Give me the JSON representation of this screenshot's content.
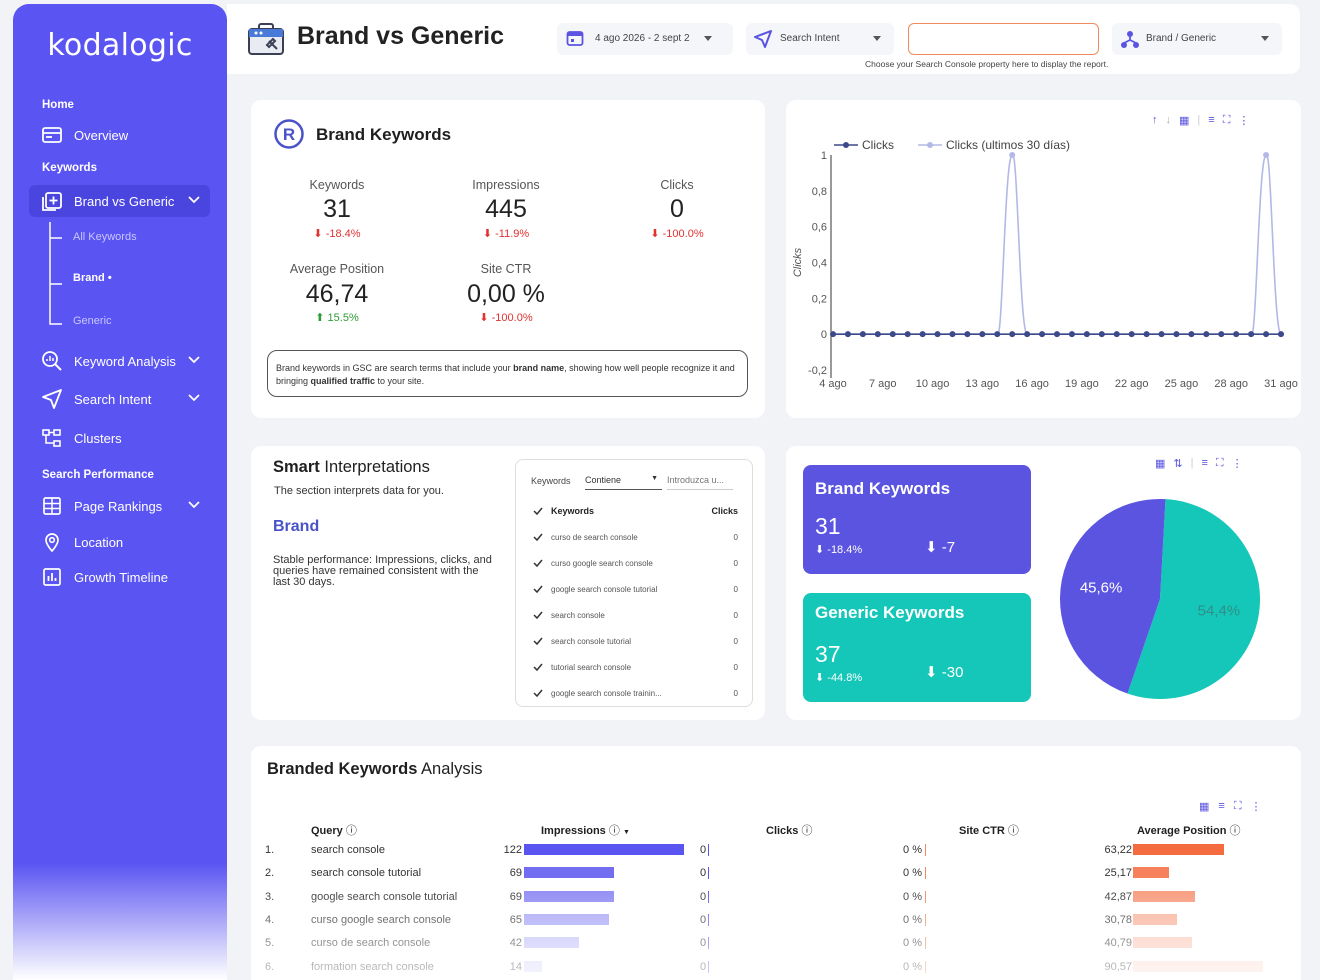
{
  "app": {
    "logo": "kodalogic",
    "title": "Brand vs Generic"
  },
  "sidebar": {
    "sections": {
      "home": "Home",
      "keywords": "Keywords",
      "search_performance": "Search Performance"
    },
    "items": {
      "overview": "Overview",
      "brand_vs_generic": "Brand vs Generic",
      "all_keywords": "All Keywords",
      "brand": "Brand •",
      "generic": "Generic",
      "keyword_analysis": "Keyword Analysis",
      "search_intent": "Search Intent",
      "clusters": "Clusters",
      "page_rankings": "Page Rankings",
      "location": "Location",
      "growth_timeline": "Growth Timeline"
    }
  },
  "header": {
    "date_range": "4 ago 2026 - 2 sept 2",
    "search_intent": "Search Intent",
    "property_value": "",
    "brand_generic": "Brand / Generic",
    "hint": "Choose your Search Console property here to display the report."
  },
  "brand_keywords": {
    "title": "Brand Keywords",
    "kpis": [
      {
        "label": "Keywords",
        "value": "31",
        "delta": "-18.4%",
        "trend": "down"
      },
      {
        "label": "Impressions",
        "value": "445",
        "delta": "-11.9%",
        "trend": "down"
      },
      {
        "label": "Clicks",
        "value": "0",
        "delta": "-100.0%",
        "trend": "down"
      },
      {
        "label": "Average Position",
        "value": "46,74",
        "delta": "15.5%",
        "trend": "up"
      },
      {
        "label": "Site CTR",
        "value": "0,00 %",
        "delta": "-100.0%",
        "trend": "down"
      }
    ],
    "note_pre": "Brand keywords in GSC are search terms that include your ",
    "note_b1": "brand name",
    "note_mid": ", showing how well people recognize it and bringing ",
    "note_b2": "qualified traffic",
    "note_post": " to your site."
  },
  "chart_data": {
    "type": "line",
    "series": [
      {
        "name": "Clicks",
        "color": "#3d4a8a",
        "values": [
          0,
          0,
          0,
          0,
          0,
          0,
          0,
          0,
          0,
          0,
          0,
          0,
          0,
          0,
          0,
          0,
          0,
          0,
          0,
          0,
          0,
          0,
          0,
          0,
          0,
          0,
          0,
          0,
          0,
          0,
          0
        ]
      },
      {
        "name": "Clicks (ultimos 30 días)",
        "color": "#b3b8e6",
        "values": [
          0,
          0,
          0,
          0,
          0,
          0,
          0,
          0,
          0,
          0,
          0,
          0,
          1,
          0,
          0,
          0,
          0,
          0,
          0,
          0,
          0,
          0,
          0,
          0,
          0,
          0,
          0,
          0,
          0,
          1,
          0
        ]
      }
    ],
    "x_ticks": [
      "4 ago",
      "7 ago",
      "10 ago",
      "13 ago",
      "16 ago",
      "19 ago",
      "22 ago",
      "25 ago",
      "28 ago",
      "31 ago"
    ],
    "y_ticks": [
      "1",
      "0,8",
      "0,6",
      "0,4",
      "0,2",
      "0",
      "-0,2"
    ],
    "ylabel": "Clicks",
    "ylim": [
      -0.2,
      1
    ],
    "grid": false,
    "legend": "top-left"
  },
  "smart": {
    "title_bold": "Smart",
    "title_rest": " Interpretations",
    "subtitle": "The section interprets data for you.",
    "heading": "Brand",
    "text": "Stable performance: Impressions, clicks, and queries have remained consistent with the last 30 days."
  },
  "kw_filter": {
    "label": "Keywords",
    "operator": "Contiene",
    "placeholder": "Introduzca u...",
    "col_keywords": "Keywords",
    "col_clicks": "Clicks",
    "rows": [
      {
        "kw": "curso de search console",
        "clicks": "0"
      },
      {
        "kw": "curso google search console",
        "clicks": "0"
      },
      {
        "kw": "google search console tutorial",
        "clicks": "0"
      },
      {
        "kw": "search console",
        "clicks": "0"
      },
      {
        "kw": "search console tutorial",
        "clicks": "0"
      },
      {
        "kw": "tutorial search console",
        "clicks": "0"
      },
      {
        "kw": "google search console trainin...",
        "clicks": "0"
      }
    ]
  },
  "summary": {
    "brand": {
      "title": "Brand Keywords",
      "value": "31",
      "delta_pct": "-18.4%",
      "delta_abs": "-7",
      "color": "#5a54e0"
    },
    "generic": {
      "title": "Generic Keywords",
      "value": "37",
      "delta_pct": "-44.8%",
      "delta_abs": "-30",
      "color": "#14c7b8"
    },
    "pie": {
      "brand_pct": 45.6,
      "generic_pct": 54.4,
      "brand_label": "45,6%",
      "generic_label": "54,4%"
    }
  },
  "analysis": {
    "title_bold": "Branded Keywords",
    "title_rest": " Analysis",
    "headers": {
      "query": "Query",
      "impressions": "Impressions",
      "clicks": "Clicks",
      "ctr": "Site CTR",
      "position": "Average Position"
    },
    "rows": [
      {
        "n": "1.",
        "query": "search console",
        "impr": 122,
        "clicks": "0",
        "ctr": "0 %",
        "pos": "63,22",
        "pos_val": 63.22
      },
      {
        "n": "2.",
        "query": "search console tutorial",
        "impr": 69,
        "clicks": "0",
        "ctr": "0 %",
        "pos": "25,17",
        "pos_val": 25.17
      },
      {
        "n": "3.",
        "query": "google search console tutorial",
        "impr": 69,
        "clicks": "0",
        "ctr": "0 %",
        "pos": "42,87",
        "pos_val": 42.87
      },
      {
        "n": "4.",
        "query": "curso google search console",
        "impr": 65,
        "clicks": "0",
        "ctr": "0 %",
        "pos": "30,78",
        "pos_val": 30.78
      },
      {
        "n": "5.",
        "query": "curso de search console",
        "impr": 42,
        "clicks": "0",
        "ctr": "0 %",
        "pos": "40,79",
        "pos_val": 40.79
      },
      {
        "n": "6.",
        "query": "formation search console",
        "impr": 14,
        "clicks": "0",
        "ctr": "0 %",
        "pos": "90,57",
        "pos_val": 90.57
      }
    ]
  }
}
